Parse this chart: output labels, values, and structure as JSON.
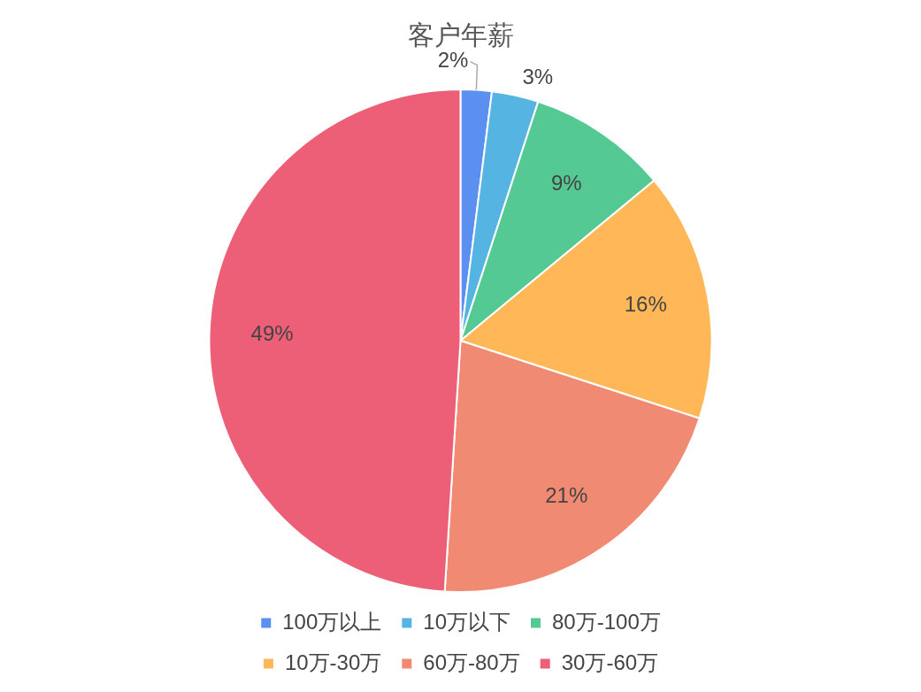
{
  "chart_data": {
    "type": "pie",
    "title": "客户年薪",
    "categories": [
      "100万以上",
      "10万以下",
      "80万-100万",
      "10万-30万",
      "60万-80万",
      "30万-60万"
    ],
    "values": [
      2,
      3,
      9,
      16,
      21,
      49
    ],
    "value_labels": [
      "2%",
      "3%",
      "9%",
      "16%",
      "21%",
      "49%"
    ],
    "colors": [
      "#5b8ff0",
      "#56b4e3",
      "#55c993",
      "#ffb757",
      "#f08a72",
      "#ec5f76"
    ],
    "legend": "bottom"
  }
}
